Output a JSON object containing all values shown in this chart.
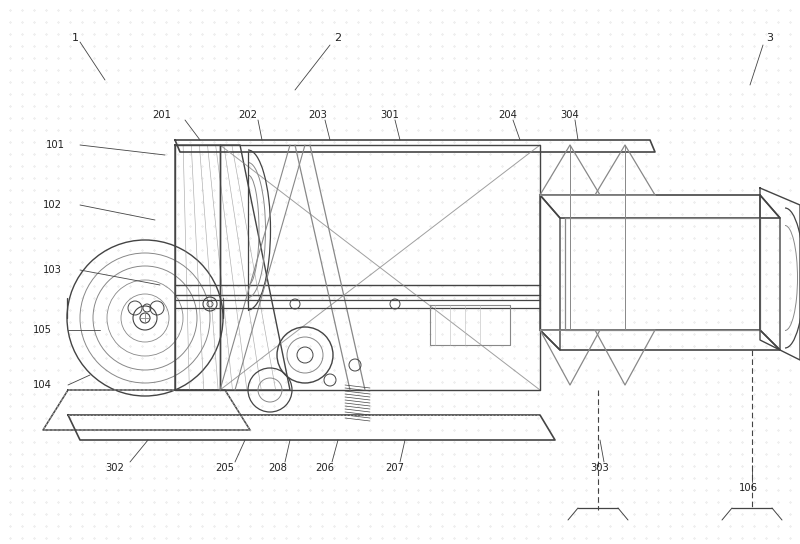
{
  "bg_color": "#ffffff",
  "lc": "#444444",
  "llc": "#888888",
  "vlc": "#bbbbbb",
  "fig_width": 8.0,
  "fig_height": 5.44,
  "dpi": 100
}
